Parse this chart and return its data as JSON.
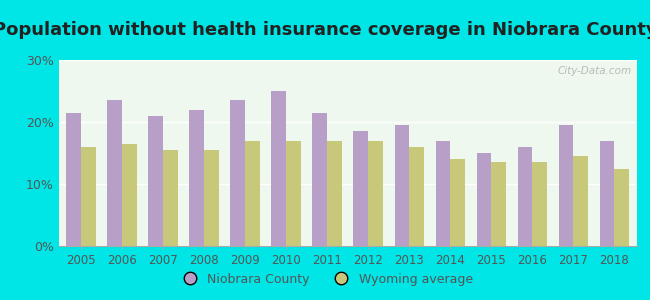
{
  "title": "Population without health insurance coverage in Niobrara County",
  "years": [
    2005,
    2006,
    2007,
    2008,
    2009,
    2010,
    2011,
    2012,
    2013,
    2014,
    2015,
    2016,
    2017,
    2018
  ],
  "niobrara": [
    21.5,
    23.5,
    21.0,
    22.0,
    23.5,
    25.0,
    21.5,
    18.5,
    19.5,
    17.0,
    15.0,
    16.0,
    19.5,
    17.0
  ],
  "wyoming": [
    16.0,
    16.5,
    15.5,
    15.5,
    17.0,
    17.0,
    17.0,
    17.0,
    16.0,
    14.0,
    13.5,
    13.5,
    14.5,
    12.5
  ],
  "niobrara_color": "#b89fc8",
  "wyoming_color": "#c8c87a",
  "background_outer": "#00e5e5",
  "background_inner": "#eef8ee",
  "ylim": [
    0,
    30
  ],
  "yticks": [
    0,
    10,
    20,
    30
  ],
  "ytick_labels": [
    "0%",
    "10%",
    "20%",
    "30%"
  ],
  "title_fontsize": 13,
  "watermark": "City-Data.com",
  "legend_niobrara": "Niobrara County",
  "legend_wyoming": "Wyoming average"
}
